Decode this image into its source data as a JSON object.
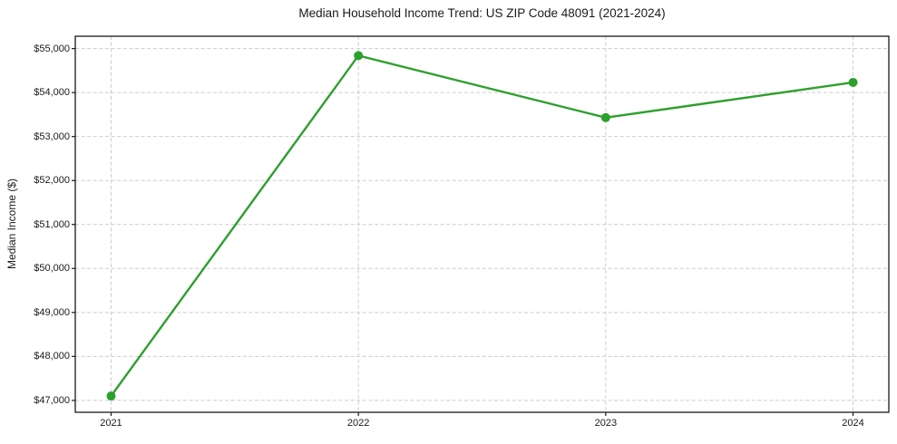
{
  "chart_data": {
    "type": "line",
    "title": "Median Household Income Trend: US ZIP Code 48091 (2021-2024)",
    "xlabel": "",
    "ylabel": "Median Income ($)",
    "categories": [
      "2021",
      "2022",
      "2023",
      "2024"
    ],
    "series": [
      {
        "name": "Median Household Income",
        "values": [
          47100,
          54840,
          53430,
          54230
        ]
      }
    ],
    "yticks": [
      47000,
      48000,
      49000,
      50000,
      51000,
      52000,
      53000,
      54000,
      55000
    ],
    "ytick_labels": [
      "$47,000",
      "$48,000",
      "$49,000",
      "$50,000",
      "$51,000",
      "$52,000",
      "$53,000",
      "$54,000",
      "$55,000"
    ],
    "ylim": [
      46730,
      55280
    ],
    "x_margin": 0.044,
    "grid": true,
    "legend": "none",
    "line_color": "#2ca02c",
    "marker": "circle",
    "marker_radius": 5,
    "line_width": 2.4,
    "spine_color": "#1a1a1a",
    "grid_color": "#cccccc",
    "background_color": "#ffffff"
  }
}
